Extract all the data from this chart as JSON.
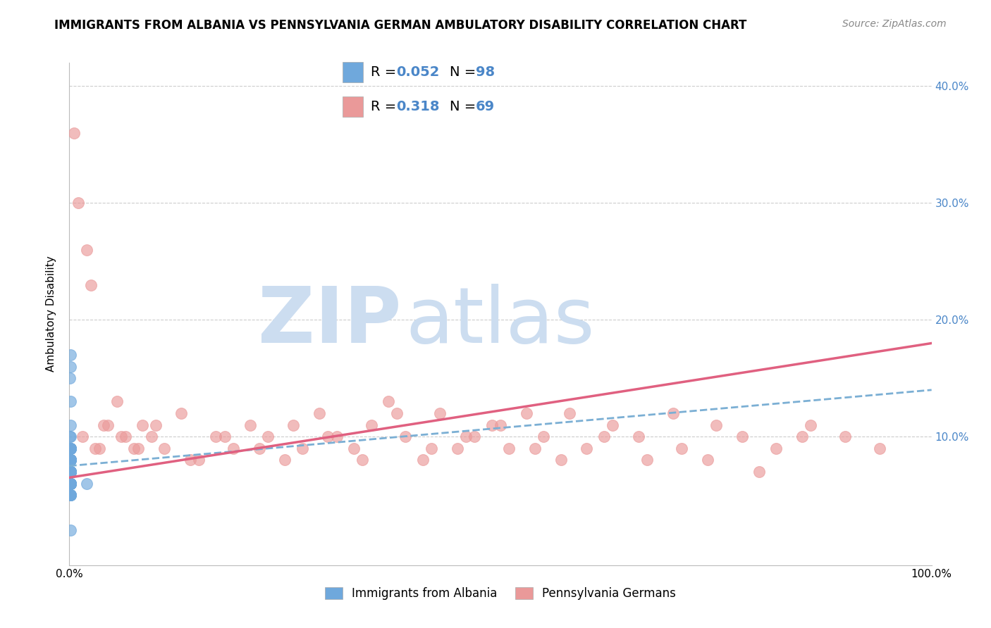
{
  "title": "IMMIGRANTS FROM ALBANIA VS PENNSYLVANIA GERMAN AMBULATORY DISABILITY CORRELATION CHART",
  "source": "Source: ZipAtlas.com",
  "ylabel": "Ambulatory Disability",
  "xlim": [
    0,
    100
  ],
  "ylim": [
    -1,
    42
  ],
  "legend_r1": "R = 0.052",
  "legend_n1": "N = 98",
  "legend_r2": "R = 0.318",
  "legend_n2": "N = 69",
  "blue_color": "#6fa8dc",
  "pink_color": "#ea9999",
  "blue_line_color": "#7bafd4",
  "pink_line_color": "#e06080",
  "watermark_zip": "ZIP",
  "watermark_atlas": "atlas",
  "blue_scatter_x": [
    0.05,
    0.08,
    0.1,
    0.12,
    0.15,
    0.1,
    0.08,
    0.12,
    0.05,
    0.1,
    0.15,
    0.08,
    0.1,
    0.12,
    0.05,
    0.1,
    0.08,
    0.15,
    0.1,
    0.08,
    0.05,
    0.12,
    0.1,
    0.08,
    0.15,
    0.1,
    0.05,
    0.08,
    0.12,
    0.1,
    0.08,
    0.15,
    0.1,
    0.05,
    0.12,
    0.08,
    0.1,
    0.15,
    0.05,
    0.1,
    0.08,
    0.12,
    0.15,
    0.1,
    0.08,
    0.05,
    0.12,
    0.1,
    0.08,
    0.15,
    0.1,
    0.05,
    0.08,
    0.12,
    0.1,
    0.15,
    0.08,
    0.1,
    0.05,
    0.12,
    0.1,
    0.08,
    0.15,
    0.1,
    0.05,
    0.08,
    0.12,
    0.1,
    0.08,
    0.15,
    0.1,
    0.05,
    0.08,
    0.12,
    0.1,
    0.15,
    0.08,
    0.1,
    2.0,
    0.08,
    0.1,
    0.12,
    0.15,
    0.1,
    0.08,
    0.05,
    0.12,
    0.1,
    0.08,
    0.15,
    0.1,
    0.05,
    0.08,
    0.12,
    0.1,
    0.15,
    0.08,
    0.1
  ],
  "blue_scatter_y": [
    8,
    9,
    7,
    8,
    6,
    9,
    7,
    8,
    9,
    7,
    6,
    8,
    5,
    7,
    6,
    9,
    8,
    7,
    6,
    5,
    8,
    7,
    6,
    9,
    7,
    8,
    6,
    5,
    7,
    8,
    6,
    9,
    7,
    5,
    8,
    6,
    7,
    9,
    6,
    8,
    7,
    5,
    6,
    8,
    7,
    6,
    9,
    7,
    8,
    5,
    6,
    7,
    8,
    6,
    9,
    7,
    5,
    8,
    6,
    7,
    17,
    15,
    13,
    10,
    8,
    7,
    6,
    5,
    10,
    11,
    6,
    7,
    8,
    5,
    6,
    9,
    7,
    8,
    6,
    5,
    16,
    7,
    6,
    8,
    9,
    5,
    7,
    6,
    8,
    9,
    7,
    6,
    5,
    8,
    7,
    6,
    9,
    2
  ],
  "pink_scatter_x": [
    0.5,
    1.0,
    2.0,
    2.5,
    3.5,
    4.5,
    5.5,
    6.5,
    7.5,
    8.5,
    9.5,
    11.0,
    13.0,
    15.0,
    17.0,
    19.0,
    21.0,
    23.0,
    25.0,
    27.0,
    29.0,
    31.0,
    33.0,
    35.0,
    37.0,
    39.0,
    41.0,
    43.0,
    45.0,
    47.0,
    49.0,
    51.0,
    53.0,
    55.0,
    57.0,
    60.0,
    63.0,
    66.0,
    70.0,
    74.0,
    78.0,
    82.0,
    86.0,
    90.0,
    94.0,
    1.5,
    3.0,
    4.0,
    6.0,
    8.0,
    10.0,
    14.0,
    18.0,
    22.0,
    26.0,
    30.0,
    34.0,
    38.0,
    42.0,
    46.0,
    50.0,
    54.0,
    58.0,
    62.0,
    67.0,
    71.0,
    75.0,
    80.0,
    85.0
  ],
  "pink_scatter_y": [
    36,
    30,
    26,
    23,
    9,
    11,
    13,
    10,
    9,
    11,
    10,
    9,
    12,
    8,
    10,
    9,
    11,
    10,
    8,
    9,
    12,
    10,
    9,
    11,
    13,
    10,
    8,
    12,
    9,
    10,
    11,
    9,
    12,
    10,
    8,
    9,
    11,
    10,
    12,
    8,
    10,
    9,
    11,
    10,
    9,
    10,
    9,
    11,
    10,
    9,
    11,
    8,
    10,
    9,
    11,
    10,
    8,
    12,
    9,
    10,
    11,
    9,
    12,
    10,
    8,
    9,
    11,
    7,
    10
  ],
  "blue_trend": [
    7.5,
    14.0
  ],
  "pink_trend": [
    6.5,
    18.0
  ],
  "grid_color": "#cccccc",
  "bg_color": "#ffffff",
  "title_fontsize": 12,
  "source_fontsize": 10,
  "axis_label_fontsize": 11,
  "tick_fontsize": 11,
  "legend_fontsize": 14,
  "watermark_zip_size": 80,
  "watermark_atlas_size": 80,
  "watermark_color": "#ccddf0",
  "legend_text_color": "#4a86c8",
  "right_tick_color": "#4a86c8"
}
